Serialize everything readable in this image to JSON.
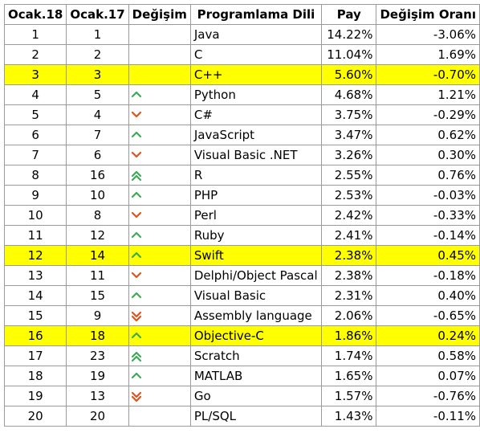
{
  "headers": [
    "Ocak.18",
    "Ocak.17",
    "Değişim",
    "Programlama Dili",
    "Pay",
    "Değişim Oranı"
  ],
  "colors": {
    "highlight": "#ffff00",
    "up": "#3daa55",
    "down": "#e0531b",
    "border": "#9a9a9a"
  },
  "rows": [
    {
      "jan18": "1",
      "jan17": "1",
      "change": "",
      "lang": "Java",
      "share": "14.22%",
      "delta": "-3.06%",
      "hl": false
    },
    {
      "jan18": "2",
      "jan17": "2",
      "change": "",
      "lang": "C",
      "share": "11.04%",
      "delta": "1.69%",
      "hl": false
    },
    {
      "jan18": "3",
      "jan17": "3",
      "change": "",
      "lang": "C++",
      "share": "5.60%",
      "delta": "-0.70%",
      "hl": true
    },
    {
      "jan18": "4",
      "jan17": "5",
      "change": "up-icon",
      "lang": "Python",
      "share": "4.68%",
      "delta": "1.21%",
      "hl": false
    },
    {
      "jan18": "5",
      "jan17": "4",
      "change": "down-icon",
      "lang": "C#",
      "share": "3.75%",
      "delta": "-0.29%",
      "hl": false
    },
    {
      "jan18": "6",
      "jan17": "7",
      "change": "up-icon",
      "lang": "JavaScript",
      "share": "3.47%",
      "delta": "0.62%",
      "hl": false
    },
    {
      "jan18": "7",
      "jan17": "6",
      "change": "down-icon",
      "lang": "Visual Basic .NET",
      "share": "3.26%",
      "delta": "0.30%",
      "hl": false
    },
    {
      "jan18": "8",
      "jan17": "16",
      "change": "double-up-icon",
      "lang": "R",
      "share": "2.55%",
      "delta": "0.76%",
      "hl": false
    },
    {
      "jan18": "9",
      "jan17": "10",
      "change": "up-icon",
      "lang": "PHP",
      "share": "2.53%",
      "delta": "-0.03%",
      "hl": false
    },
    {
      "jan18": "10",
      "jan17": "8",
      "change": "down-icon",
      "lang": "Perl",
      "share": "2.42%",
      "delta": "-0.33%",
      "hl": false
    },
    {
      "jan18": "11",
      "jan17": "12",
      "change": "up-icon",
      "lang": "Ruby",
      "share": "2.41%",
      "delta": "-0.14%",
      "hl": false
    },
    {
      "jan18": "12",
      "jan17": "14",
      "change": "up-icon",
      "lang": "Swift",
      "share": "2.38%",
      "delta": "0.45%",
      "hl": true
    },
    {
      "jan18": "13",
      "jan17": "11",
      "change": "down-icon",
      "lang": "Delphi/Object Pascal",
      "share": "2.38%",
      "delta": "-0.18%",
      "hl": false
    },
    {
      "jan18": "14",
      "jan17": "15",
      "change": "up-icon",
      "lang": "Visual Basic",
      "share": "2.31%",
      "delta": "0.40%",
      "hl": false
    },
    {
      "jan18": "15",
      "jan17": "9",
      "change": "double-down-icon",
      "lang": "Assembly language",
      "share": "2.06%",
      "delta": "-0.65%",
      "hl": false
    },
    {
      "jan18": "16",
      "jan17": "18",
      "change": "up-icon",
      "lang": "Objective-C",
      "share": "1.86%",
      "delta": "0.24%",
      "hl": true
    },
    {
      "jan18": "17",
      "jan17": "23",
      "change": "double-up-icon",
      "lang": "Scratch",
      "share": "1.74%",
      "delta": "0.58%",
      "hl": false
    },
    {
      "jan18": "18",
      "jan17": "19",
      "change": "up-icon",
      "lang": "MATLAB",
      "share": "1.65%",
      "delta": "0.07%",
      "hl": false
    },
    {
      "jan18": "19",
      "jan17": "13",
      "change": "double-down-icon",
      "lang": "Go",
      "share": "1.57%",
      "delta": "-0.76%",
      "hl": false
    },
    {
      "jan18": "20",
      "jan17": "20",
      "change": "",
      "lang": "PL/SQL",
      "share": "1.43%",
      "delta": "-0.11%",
      "hl": false
    }
  ]
}
